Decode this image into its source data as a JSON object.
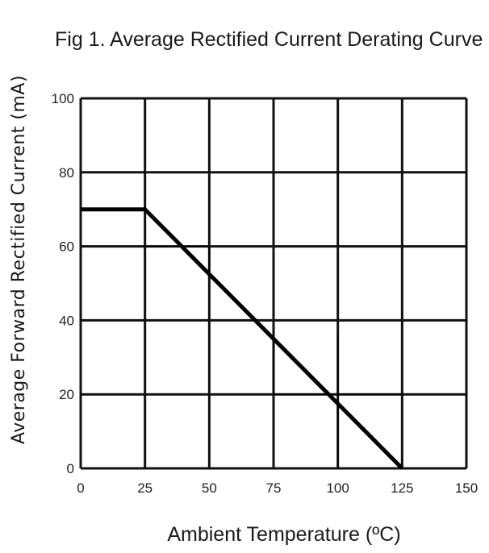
{
  "chart_data": {
    "type": "line",
    "title": "Fig 1. Average Rectified Current Derating Curve",
    "xlabel": "Ambient Temperature (ºC)",
    "ylabel": "Average Forward Rectified Current (mA)",
    "xlim": [
      0,
      150
    ],
    "ylim": [
      0,
      100
    ],
    "x_ticks": [
      "0",
      "25",
      "50",
      "75",
      "100",
      "125",
      "150"
    ],
    "y_ticks": [
      "0",
      "20",
      "40",
      "60",
      "80",
      "100"
    ],
    "grid": true,
    "legend": "none",
    "series": [
      {
        "x": [
          0,
          25,
          125
        ],
        "y": [
          70,
          70,
          0
        ]
      }
    ],
    "reference_lines": [
      {
        "x": [
          25,
          50,
          50
        ],
        "y": [
          60,
          60,
          52.5
        ]
      },
      {
        "x": [
          75,
          75,
          125
        ],
        "y": [
          35,
          20,
          20
        ]
      },
      {
        "x": [
          100,
          100
        ],
        "y": [
          36,
          0
        ]
      }
    ],
    "colors": {
      "curve": "#000000",
      "grid": "#111111",
      "reference": "#000000"
    }
  }
}
